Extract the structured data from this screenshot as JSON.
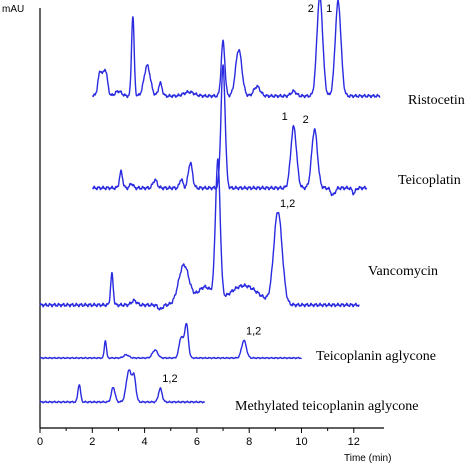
{
  "chart_data": {
    "type": "line",
    "xlabel": "Time (min)",
    "ylabel": "mAU",
    "xlim": [
      0,
      13
    ],
    "x_ticks": [
      0,
      2,
      4,
      6,
      8,
      10,
      12
    ],
    "grid": false,
    "series": [
      {
        "name": "Ristocetin",
        "color": "#2a2ae0",
        "x_range": [
          2.0,
          13.0
        ],
        "baseline": 0.05,
        "peaks": [
          {
            "rt": 2.3,
            "height": 0.3,
            "width": 0.08
          },
          {
            "rt": 2.5,
            "height": 0.32,
            "width": 0.08
          },
          {
            "rt": 3.0,
            "height": 0.06,
            "width": 0.12
          },
          {
            "rt": 3.55,
            "height": 1.0,
            "width": 0.05
          },
          {
            "rt": 4.1,
            "height": 0.38,
            "width": 0.12
          },
          {
            "rt": 4.6,
            "height": 0.16,
            "width": 0.07
          },
          {
            "rt": 5.7,
            "height": 0.05,
            "width": 0.2
          },
          {
            "rt": 7.0,
            "height": 0.68,
            "width": 0.07
          },
          {
            "rt": 7.6,
            "height": 0.58,
            "width": 0.12
          },
          {
            "rt": 8.3,
            "height": 0.12,
            "width": 0.12
          },
          {
            "rt": 9.7,
            "height": 0.06,
            "width": 0.1
          },
          {
            "rt": 10.7,
            "height": 1.25,
            "width": 0.11
          },
          {
            "rt": 11.4,
            "height": 1.18,
            "width": 0.11
          }
        ],
        "peak_labels": [
          {
            "text": "2",
            "rt": 10.7
          },
          {
            "text": "1",
            "rt": 11.4
          }
        ]
      },
      {
        "name": "Teicoplatin",
        "color": "#2a2ae0",
        "x_range": [
          2.0,
          12.5
        ],
        "baseline": 0.0,
        "peaks": [
          {
            "rt": 3.1,
            "height": 0.18,
            "width": 0.06
          },
          {
            "rt": 3.5,
            "height": 0.05,
            "width": 0.06
          },
          {
            "rt": 4.4,
            "height": 0.09,
            "width": 0.08
          },
          {
            "rt": 5.4,
            "height": 0.1,
            "width": 0.06
          },
          {
            "rt": 5.75,
            "height": 0.28,
            "width": 0.08
          },
          {
            "rt": 7.0,
            "height": 1.35,
            "width": 0.08
          },
          {
            "rt": 9.7,
            "height": 0.68,
            "width": 0.11
          },
          {
            "rt": 10.5,
            "height": 0.65,
            "width": 0.11
          },
          {
            "rt": 11.2,
            "height": -0.08,
            "width": 0.08
          },
          {
            "rt": 12.0,
            "height": -0.06,
            "width": 0.06
          }
        ],
        "peak_labels": [
          {
            "text": "1",
            "rt": 9.7
          },
          {
            "text": "2",
            "rt": 10.5
          }
        ]
      },
      {
        "name": "Vancomycin",
        "color": "#2a2ae0",
        "x_range": [
          0.0,
          12.2
        ],
        "baseline": 0.0,
        "peaks": [
          {
            "rt": 2.75,
            "height": 0.35,
            "width": 0.05
          },
          {
            "rt": 3.6,
            "height": 0.05,
            "width": 0.1
          },
          {
            "rt": 4.6,
            "height": -0.05,
            "width": 0.08
          },
          {
            "rt": 5.5,
            "height": 0.45,
            "width": 0.2
          },
          {
            "rt": 6.3,
            "height": 0.2,
            "width": 0.3
          },
          {
            "rt": 6.8,
            "height": 1.55,
            "width": 0.09
          },
          {
            "rt": 7.8,
            "height": 0.22,
            "width": 0.55
          },
          {
            "rt": 9.1,
            "height": 1.05,
            "width": 0.16
          }
        ],
        "peak_labels": [
          {
            "text": "1,2",
            "rt": 9.1
          }
        ]
      },
      {
        "name": "Teicoplanin aglycone",
        "color": "#2a2ae0",
        "x_range": [
          0.0,
          10.0
        ],
        "baseline": 0.0,
        "peaks": [
          {
            "rt": 2.5,
            "height": 0.55,
            "width": 0.04
          },
          {
            "rt": 3.3,
            "height": 0.1,
            "width": 0.1
          },
          {
            "rt": 4.4,
            "height": 0.25,
            "width": 0.1
          },
          {
            "rt": 5.4,
            "height": 0.65,
            "width": 0.08
          },
          {
            "rt": 5.6,
            "height": 1.05,
            "width": 0.07
          },
          {
            "rt": 7.8,
            "height": 0.55,
            "width": 0.09
          }
        ],
        "peak_labels": [
          {
            "text": "1,2",
            "rt": 7.8
          }
        ]
      },
      {
        "name": "Methylated teicoplanin aglycone",
        "color": "#2a2ae0",
        "x_range": [
          0.0,
          6.3
        ],
        "baseline": 0.0,
        "peaks": [
          {
            "rt": 1.5,
            "height": 0.42,
            "width": 0.05
          },
          {
            "rt": 2.8,
            "height": 0.35,
            "width": 0.07
          },
          {
            "rt": 3.4,
            "height": 0.75,
            "width": 0.1
          },
          {
            "rt": 3.6,
            "height": 0.55,
            "width": 0.07
          },
          {
            "rt": 4.6,
            "height": 0.32,
            "width": 0.07
          }
        ],
        "peak_labels": [
          {
            "text": "1,2",
            "rt": 4.6
          }
        ]
      }
    ]
  }
}
